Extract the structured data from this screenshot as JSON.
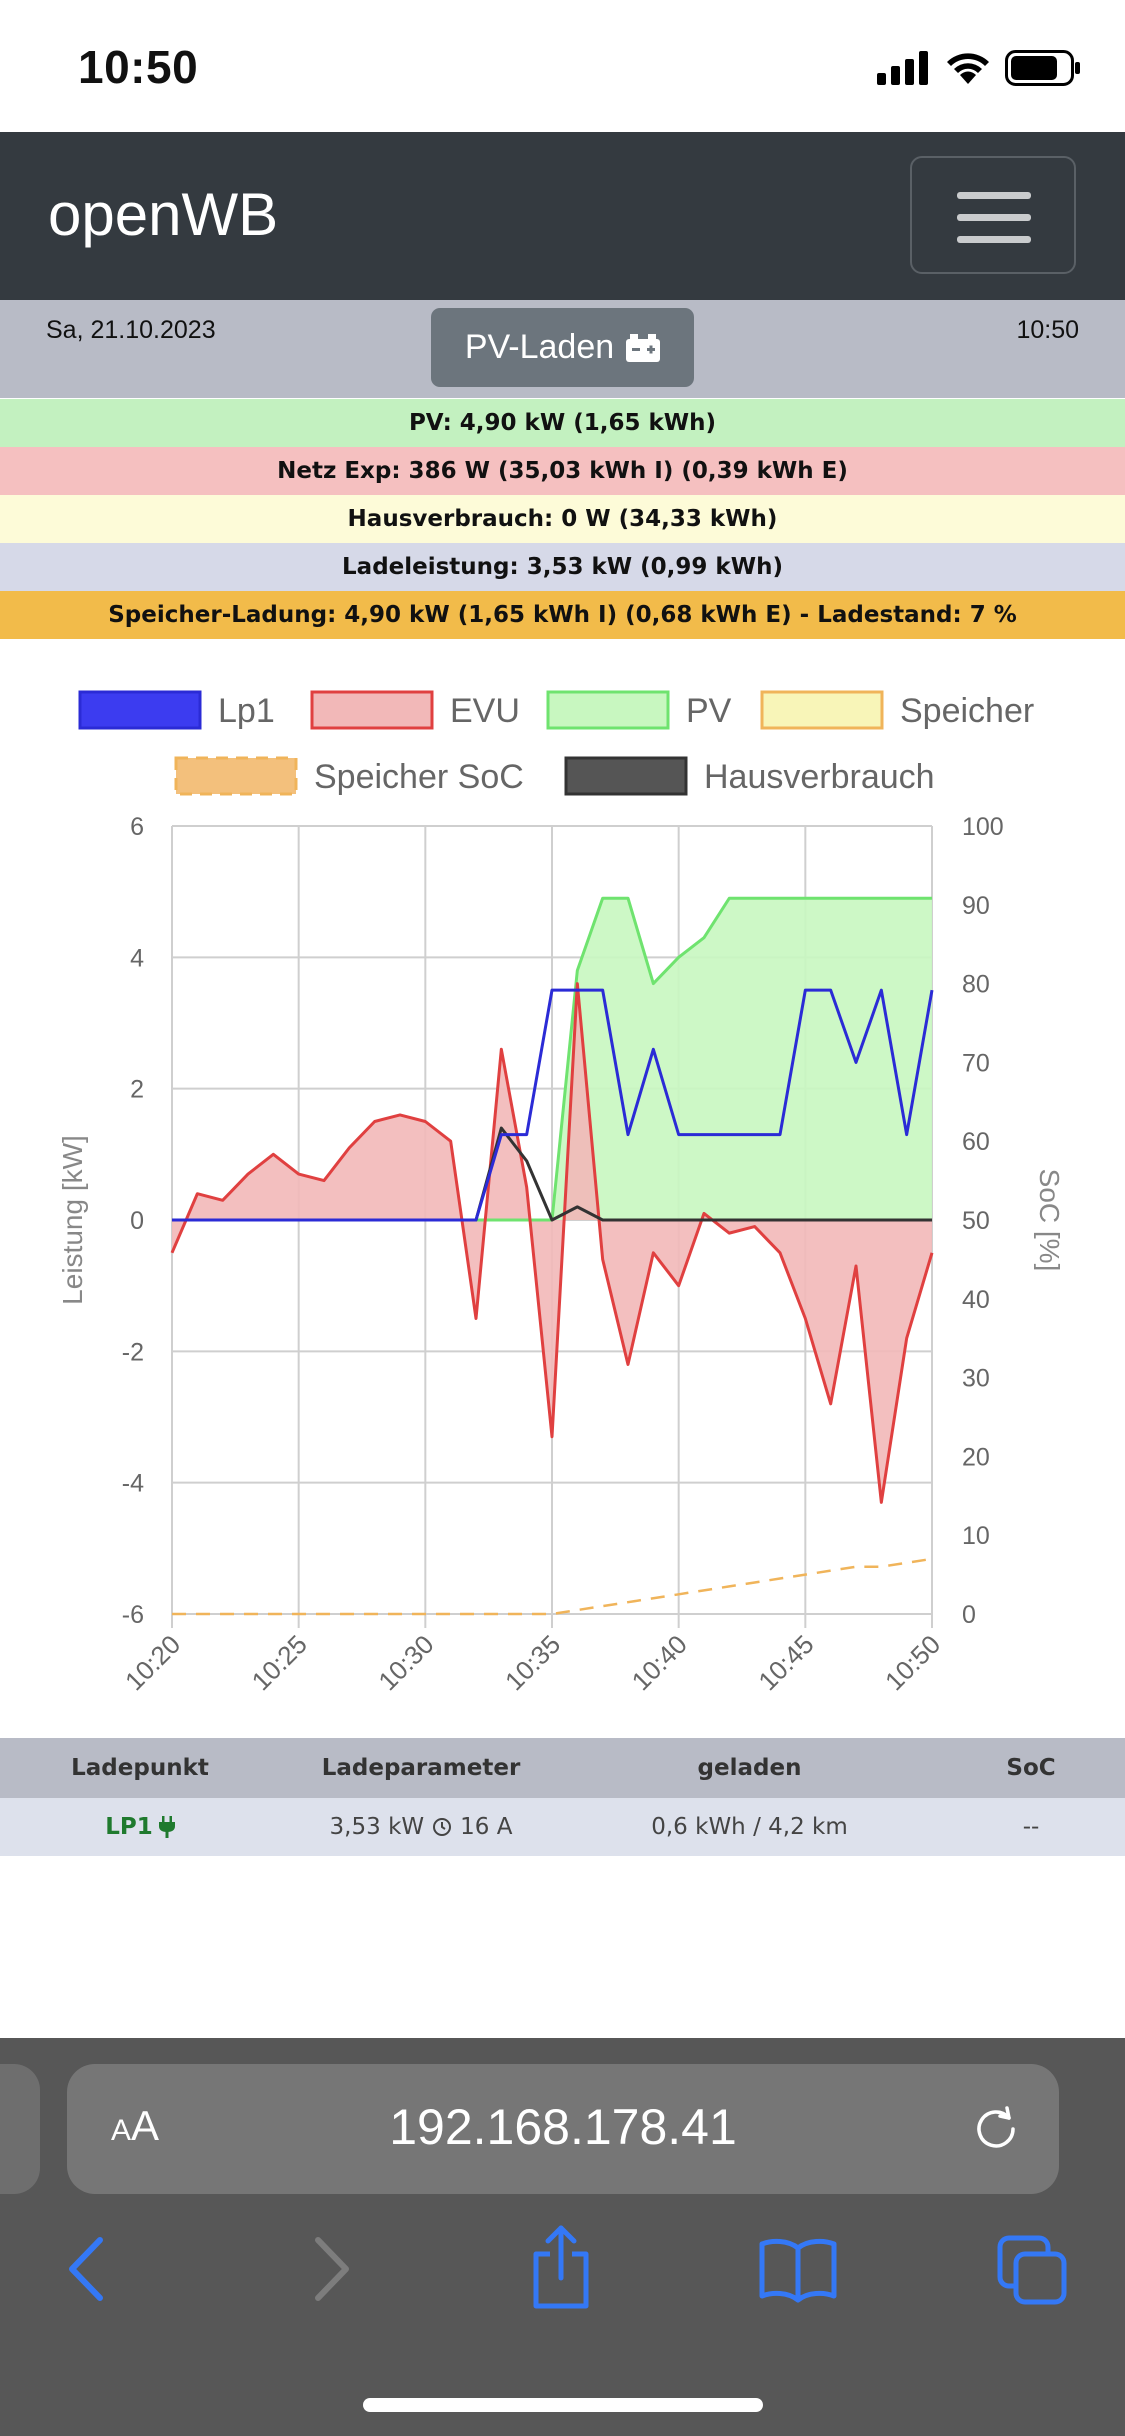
{
  "status_bar": {
    "time": "10:50"
  },
  "navbar": {
    "brand": "openWB"
  },
  "header": {
    "date": "Sa, 21.10.2023",
    "time": "10:50",
    "mode_label": "PV-Laden"
  },
  "info_rows": [
    {
      "text": "PV: 4,90 kW (1,65 kWh)",
      "bg": "#c3f1c0"
    },
    {
      "text": "Netz Exp: 386 W (35,03 kWh I) (0,39 kWh E)",
      "bg": "#f5c0c0"
    },
    {
      "text": "Hausverbrauch: 0 W (34,33 kWh)",
      "bg": "#fdfbd8"
    },
    {
      "text": "Ladeleistung: 3,53 kW (0,99 kWh)",
      "bg": "#d6d9e8"
    },
    {
      "text": "Speicher-Ladung: 4,90 kW (1,65 kWh I) (0,68 kWh E) - Ladestand: 7 %",
      "bg": "#f2bb4a"
    }
  ],
  "chart_data": {
    "type": "line",
    "x": [
      "10:20",
      "10:21",
      "10:22",
      "10:23",
      "10:24",
      "10:25",
      "10:26",
      "10:27",
      "10:28",
      "10:29",
      "10:30",
      "10:31",
      "10:32",
      "10:33",
      "10:34",
      "10:35",
      "10:36",
      "10:37",
      "10:38",
      "10:39",
      "10:40",
      "10:41",
      "10:42",
      "10:43",
      "10:44",
      "10:45",
      "10:46",
      "10:47",
      "10:48",
      "10:49",
      "10:50"
    ],
    "x_ticks": [
      "10:20",
      "10:25",
      "10:30",
      "10:35",
      "10:40",
      "10:45",
      "10:50"
    ],
    "ylabel": "Leistung [kW]",
    "y2label": "SoC [%]",
    "ylim": [
      -6,
      6
    ],
    "y_ticks": [
      "6",
      "4",
      "2",
      "0",
      "-2",
      "-4",
      "-6"
    ],
    "y2lim": [
      0,
      100
    ],
    "y2_ticks": [
      "100",
      "90",
      "80",
      "70",
      "60",
      "50",
      "40",
      "30",
      "20",
      "10",
      "0"
    ],
    "grid": true,
    "legend_position": "top",
    "legend": [
      {
        "name": "Lp1",
        "color": "#2b2bd6",
        "fill": "#3c3cf0",
        "dashed": false
      },
      {
        "name": "EVU",
        "color": "#e04040",
        "fill": "#f2b8b8",
        "dashed": false
      },
      {
        "name": "PV",
        "color": "#6fe36f",
        "fill": "#c8f7c0",
        "dashed": false
      },
      {
        "name": "Speicher",
        "color": "#f0b45a",
        "fill": "#f8f5b8",
        "dashed": false
      },
      {
        "name": "Speicher SoC",
        "color": "#f0b45a",
        "fill": "#f3c07c",
        "dashed": true
      },
      {
        "name": "Hausverbrauch",
        "color": "#333333",
        "fill": "#555555",
        "dashed": false
      }
    ],
    "series": [
      {
        "name": "Lp1",
        "axis": "left",
        "values": [
          0,
          0,
          0,
          0,
          0,
          0,
          0,
          0,
          0,
          0,
          0,
          0,
          0,
          1.3,
          1.3,
          3.5,
          3.5,
          3.5,
          1.3,
          2.6,
          1.3,
          1.3,
          1.3,
          1.3,
          1.3,
          3.5,
          3.5,
          2.4,
          3.5,
          1.3,
          3.5
        ]
      },
      {
        "name": "EVU",
        "axis": "left",
        "values": [
          -0.5,
          0.4,
          0.3,
          0.7,
          1.0,
          0.7,
          0.6,
          1.1,
          1.5,
          1.6,
          1.5,
          1.2,
          -1.5,
          2.6,
          0.5,
          -3.3,
          3.6,
          -0.6,
          -2.2,
          -0.5,
          -1.0,
          0.1,
          -0.2,
          -0.1,
          -0.5,
          -1.5,
          -2.8,
          -0.7,
          -4.3,
          -1.8,
          -0.5
        ]
      },
      {
        "name": "PV",
        "axis": "left",
        "values": [
          0,
          0,
          0,
          0,
          0,
          0,
          0,
          0,
          0,
          0,
          0,
          0,
          0,
          0,
          0,
          0,
          3.8,
          4.9,
          4.9,
          3.6,
          4.0,
          4.3,
          4.9,
          4.9,
          4.9,
          4.9,
          4.9,
          4.9,
          4.9,
          4.9,
          4.9
        ]
      },
      {
        "name": "Hausverbrauch",
        "axis": "left",
        "values": [
          0,
          0,
          0,
          0,
          0,
          0,
          0,
          0,
          0,
          0,
          0,
          0,
          0,
          1.4,
          0.9,
          0,
          0.2,
          0,
          0,
          0,
          0,
          0,
          0,
          0,
          0,
          0,
          0,
          0,
          0,
          0,
          0
        ]
      },
      {
        "name": "Speicher SoC",
        "axis": "right",
        "values": [
          0,
          0,
          0,
          0,
          0,
          0,
          0,
          0,
          0,
          0,
          0,
          0,
          0,
          0,
          0,
          0,
          0.5,
          1,
          1.5,
          2,
          2.5,
          3,
          3.5,
          4,
          4.5,
          5,
          5.5,
          6,
          6,
          6.5,
          7
        ]
      }
    ]
  },
  "table": {
    "headers": [
      "Ladepunkt",
      "Ladeparameter",
      "geladen",
      "SoC"
    ],
    "rows": [
      {
        "lp": "LP1",
        "params": "3,53 kW",
        "current": "16 A",
        "loaded": "0,6 kWh / 4,2 km",
        "soc": "--"
      }
    ]
  },
  "browser": {
    "url": "192.168.178.41",
    "aa_small": "A",
    "aa_big": "A"
  }
}
